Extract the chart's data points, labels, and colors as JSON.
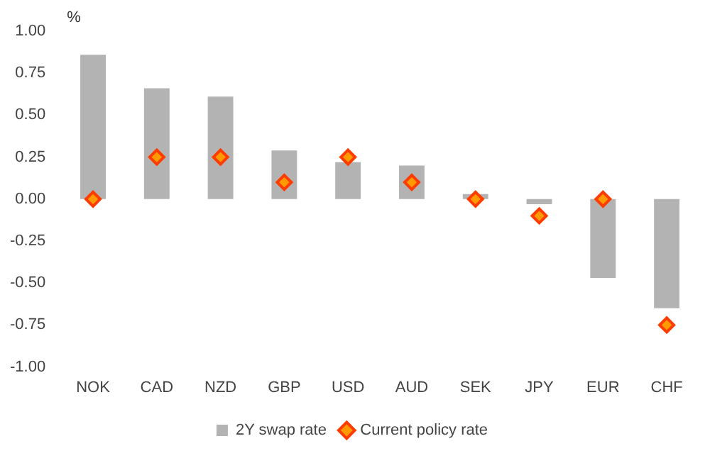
{
  "chart_data": {
    "type": "bar",
    "ylabel": "%",
    "categories": [
      "NOK",
      "CAD",
      "NZD",
      "GBP",
      "USD",
      "AUD",
      "SEK",
      "JPY",
      "EUR",
      "CHF"
    ],
    "series": [
      {
        "name": "2Y swap rate",
        "color": "#b3b3b3",
        "values": [
          0.86,
          0.66,
          0.61,
          0.29,
          0.22,
          0.2,
          0.03,
          -0.03,
          -0.47,
          -0.65
        ]
      },
      {
        "name": "Current policy rate",
        "type": "scatter",
        "color": "#ff3c00",
        "values": [
          0,
          0.25,
          0.25,
          0.1,
          0.25,
          0.1,
          0,
          -0.1,
          0,
          -0.75
        ]
      }
    ],
    "ylim": [
      -1,
      1
    ],
    "yticks": [
      {
        "value": 1,
        "label": "1.00"
      },
      {
        "value": 0.75,
        "label": "0.75"
      },
      {
        "value": 0.5,
        "label": "0.50"
      },
      {
        "value": 0.25,
        "label": "0.25"
      },
      {
        "value": 0,
        "label": "0.00"
      },
      {
        "value": -0.25,
        "label": "-0.25"
      },
      {
        "value": -0.5,
        "label": "-0.50"
      },
      {
        "value": -0.75,
        "label": "-0.75"
      },
      {
        "value": -1,
        "label": "-1.00"
      }
    ],
    "grid": false,
    "legend": "bottom",
    "marker": "diamond"
  }
}
